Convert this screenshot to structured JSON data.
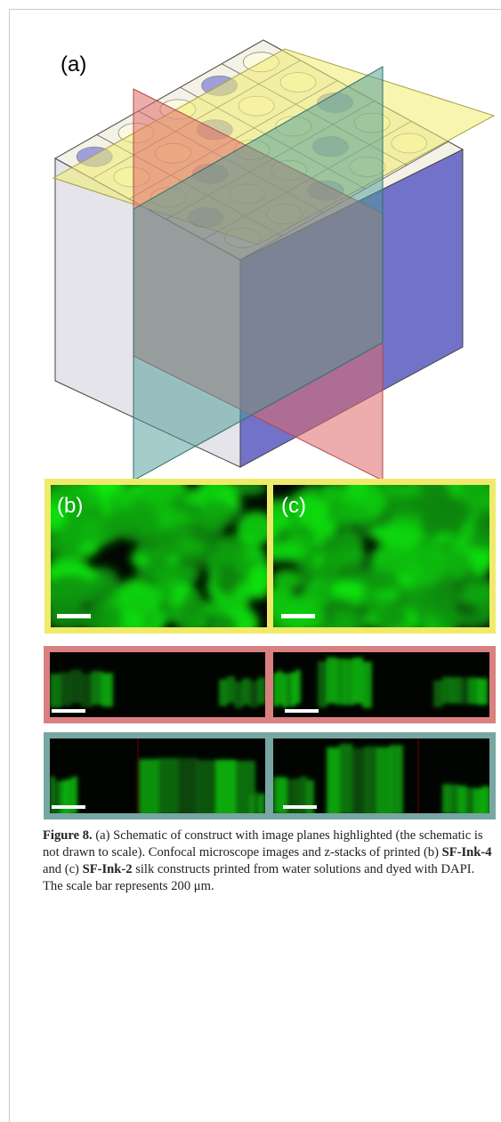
{
  "panels": {
    "a": "(a)",
    "b": "(b)",
    "c": "(c)"
  },
  "caption": {
    "segments": [
      {
        "text": "Figure 8.",
        "bold": true
      },
      {
        "text": " (a) Schematic of construct with image planes highlighted (the schematic is not drawn to scale). Confocal microscope images and z-stacks of printed (b) ",
        "bold": false
      },
      {
        "text": "SF-Ink-4",
        "bold": true
      },
      {
        "text": " and (c) ",
        "bold": false
      },
      {
        "text": "SF-Ink-2",
        "bold": true
      },
      {
        "text": " silk constructs printed from water solutions and dyed with DAPI. The scale bar represents 200 μm.",
        "bold": false
      }
    ]
  }
}
